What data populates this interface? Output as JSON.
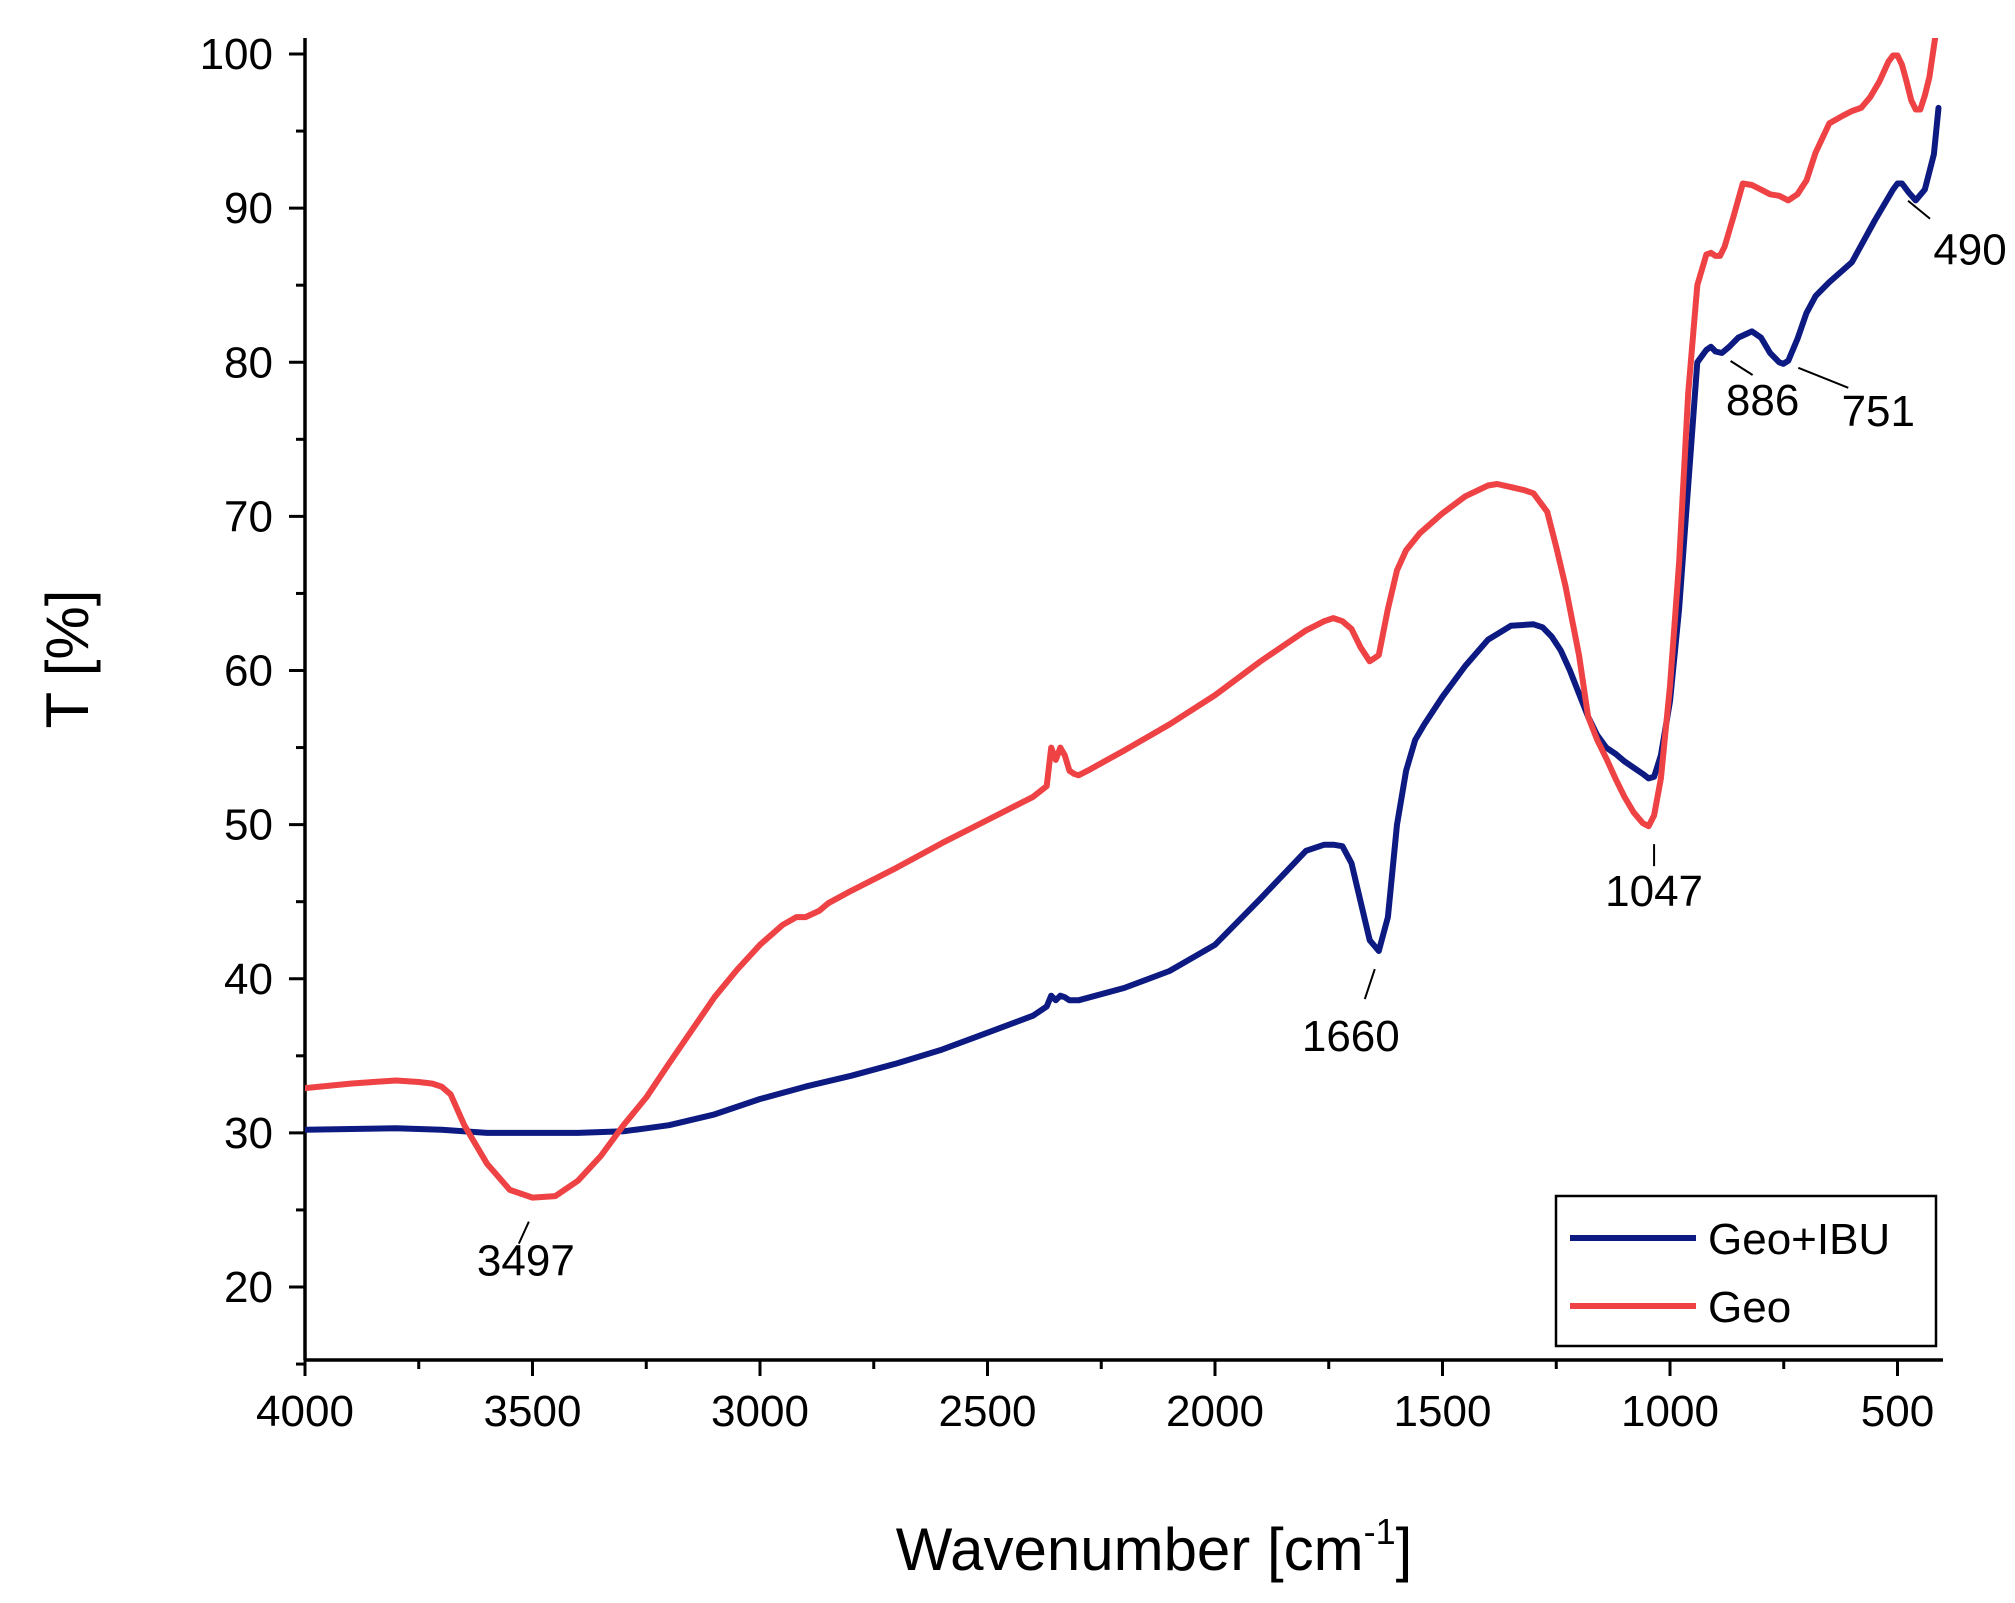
{
  "chart_data": {
    "type": "line",
    "title": "",
    "xlabel": "Wavenumber [cm",
    "xlabel_superscript": "-1",
    "xlabel_suffix": "]",
    "ylabel": "T [%]",
    "xlim": [
      4000,
      400
    ],
    "ylim": [
      15,
      100
    ],
    "grid": false,
    "legend_position": "bottom-right",
    "x_ticks": [
      4000,
      3500,
      3000,
      2500,
      2000,
      1500,
      1000,
      500
    ],
    "y_ticks": [
      20,
      30,
      40,
      50,
      60,
      70,
      80,
      90,
      100
    ],
    "series": [
      {
        "name": "Geo+IBU",
        "color": "#0c1a82",
        "x": [
          4000,
          3800,
          3700,
          3600,
          3500,
          3400,
          3300,
          3250,
          3200,
          3100,
          3000,
          2900,
          2800,
          2700,
          2600,
          2500,
          2400,
          2370,
          2360,
          2350,
          2340,
          2330,
          2320,
          2300,
          2200,
          2100,
          2000,
          1900,
          1800,
          1760,
          1740,
          1720,
          1700,
          1680,
          1660,
          1640,
          1620,
          1600,
          1580,
          1560,
          1540,
          1500,
          1450,
          1400,
          1350,
          1300,
          1280,
          1260,
          1240,
          1220,
          1200,
          1180,
          1160,
          1140,
          1120,
          1100,
          1080,
          1060,
          1047,
          1035,
          1020,
          1000,
          980,
          960,
          940,
          920,
          910,
          900,
          886,
          870,
          850,
          820,
          800,
          780,
          760,
          751,
          740,
          720,
          700,
          680,
          650,
          600,
          550,
          510,
          500,
          490,
          475,
          460,
          440,
          420,
          410
        ],
        "y": [
          30.2,
          30.3,
          30.2,
          30.0,
          30.0,
          30.0,
          30.1,
          30.3,
          30.5,
          31.2,
          32.2,
          33.0,
          33.7,
          34.5,
          35.4,
          36.5,
          37.6,
          38.2,
          38.9,
          38.6,
          38.9,
          38.8,
          38.6,
          38.6,
          39.4,
          40.5,
          42.2,
          45.2,
          48.3,
          48.7,
          48.7,
          48.6,
          47.5,
          45.0,
          42.5,
          41.8,
          44.0,
          50.0,
          53.5,
          55.5,
          56.5,
          58.3,
          60.3,
          62.0,
          62.9,
          63.0,
          62.8,
          62.2,
          61.3,
          60.0,
          58.5,
          57.0,
          55.8,
          55.0,
          54.6,
          54.1,
          53.7,
          53.3,
          53.0,
          53.1,
          54.5,
          58.0,
          64.0,
          72.0,
          80.0,
          80.8,
          81.0,
          80.7,
          80.6,
          81.0,
          81.6,
          82.0,
          81.6,
          80.6,
          80.0,
          79.9,
          80.1,
          81.5,
          83.2,
          84.3,
          85.2,
          86.5,
          89.2,
          91.2,
          91.6,
          91.6,
          91.0,
          90.5,
          91.2,
          93.5,
          96.5
        ]
      },
      {
        "name": "Geo",
        "color": "#ee4245",
        "x": [
          4000,
          3900,
          3850,
          3800,
          3750,
          3720,
          3700,
          3680,
          3650,
          3600,
          3550,
          3500,
          3450,
          3400,
          3350,
          3300,
          3250,
          3200,
          3100,
          3050,
          3000,
          2950,
          2920,
          2900,
          2870,
          2850,
          2800,
          2700,
          2600,
          2500,
          2400,
          2370,
          2360,
          2350,
          2340,
          2330,
          2320,
          2310,
          2300,
          2280,
          2200,
          2100,
          2000,
          1900,
          1800,
          1760,
          1740,
          1720,
          1700,
          1680,
          1660,
          1650,
          1640,
          1620,
          1600,
          1580,
          1550,
          1500,
          1450,
          1400,
          1380,
          1350,
          1320,
          1300,
          1270,
          1250,
          1230,
          1200,
          1180,
          1160,
          1140,
          1120,
          1100,
          1080,
          1060,
          1047,
          1035,
          1020,
          1000,
          980,
          960,
          940,
          920,
          910,
          900,
          890,
          880,
          860,
          840,
          820,
          800,
          780,
          760,
          740,
          720,
          700,
          680,
          650,
          620,
          600,
          580,
          560,
          540,
          520,
          510,
          500,
          490,
          480,
          470,
          460,
          450,
          440,
          430,
          420,
          410
        ],
        "y": [
          32.9,
          33.2,
          33.3,
          33.4,
          33.3,
          33.2,
          33.0,
          32.5,
          30.5,
          28.0,
          26.3,
          25.8,
          25.9,
          26.9,
          28.5,
          30.5,
          32.3,
          34.5,
          38.8,
          40.6,
          42.2,
          43.5,
          44.0,
          44.0,
          44.4,
          44.9,
          45.7,
          47.2,
          48.8,
          50.3,
          51.8,
          52.5,
          55.0,
          54.2,
          55.0,
          54.5,
          53.5,
          53.3,
          53.2,
          53.5,
          54.8,
          56.5,
          58.4,
          60.6,
          62.6,
          63.2,
          63.4,
          63.2,
          62.7,
          61.5,
          60.6,
          60.8,
          61.0,
          64.0,
          66.5,
          67.8,
          68.9,
          70.2,
          71.3,
          72.0,
          72.1,
          71.9,
          71.7,
          71.5,
          70.3,
          68.0,
          65.5,
          61.0,
          57.0,
          55.5,
          54.3,
          53.0,
          51.8,
          50.8,
          50.1,
          49.9,
          50.6,
          53.0,
          59.0,
          67.0,
          78.0,
          85.0,
          87.0,
          87.1,
          86.9,
          86.9,
          87.5,
          89.5,
          91.6,
          91.5,
          91.2,
          90.9,
          90.8,
          90.5,
          90.9,
          91.8,
          93.6,
          95.5,
          96.0,
          96.3,
          96.5,
          97.2,
          98.2,
          99.5,
          99.9,
          99.9,
          99.3,
          98.2,
          97.0,
          96.4,
          96.4,
          97.3,
          98.5,
          100.5,
          102.5
        ]
      }
    ],
    "annotations": [
      {
        "label": "3497",
        "x": 3497,
        "y": 25.8
      },
      {
        "label": "1660",
        "x": 1640,
        "y": 41.8
      },
      {
        "label": "1047",
        "x": 1035,
        "y": 49.9
      },
      {
        "label": "886",
        "x": 880,
        "y": 80.6
      },
      {
        "label": "751",
        "x": 740,
        "y": 79.9
      },
      {
        "label": "490",
        "x": 490,
        "y": 91.0
      }
    ]
  }
}
